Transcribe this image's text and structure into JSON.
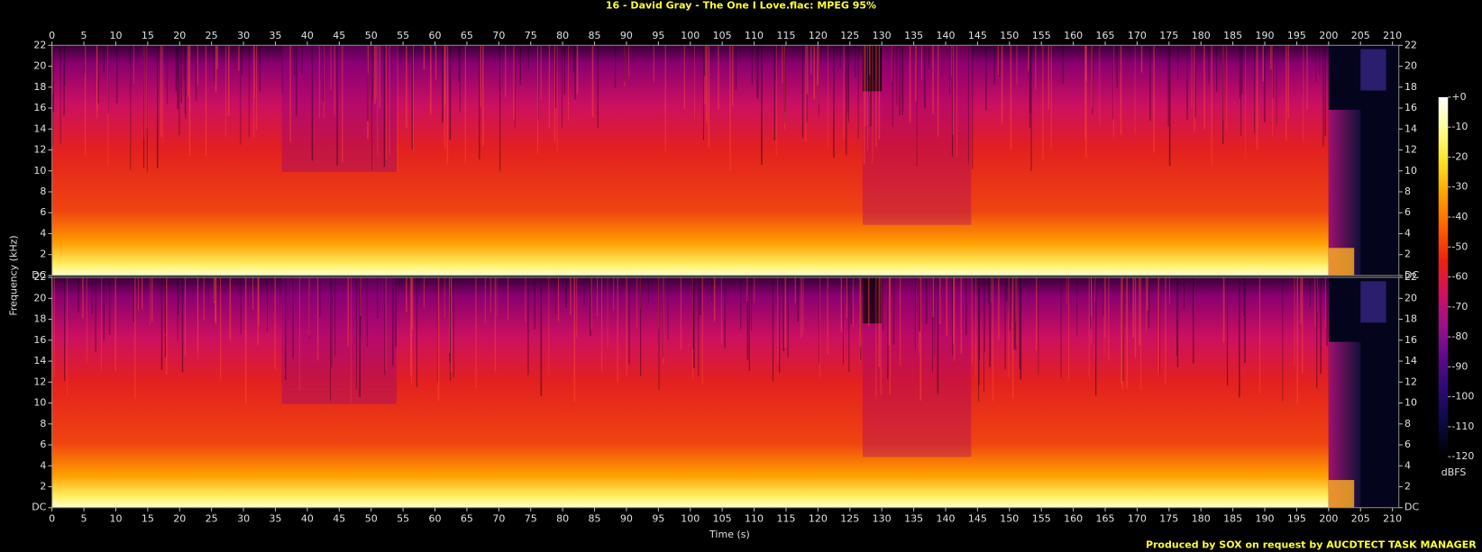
{
  "chart_data": {
    "type": "spectrogram",
    "title": "16 - David Gray - The One I Love.flac: MPEG 95%",
    "x_label": "Time (s)",
    "y_label": "Frequency (kHz)",
    "footer": "Produced by SOX on request by AUCDTECT TASK MANAGER",
    "xlim": [
      0,
      211
    ],
    "xticks": [
      0,
      5,
      10,
      15,
      20,
      25,
      30,
      35,
      40,
      45,
      50,
      55,
      60,
      65,
      70,
      75,
      80,
      85,
      90,
      95,
      100,
      105,
      110,
      115,
      120,
      125,
      130,
      135,
      140,
      145,
      150,
      155,
      160,
      165,
      170,
      175,
      180,
      185,
      190,
      195,
      200,
      205,
      210
    ],
    "ylim": [
      0,
      22
    ],
    "yticks": [
      {
        "value": 0,
        "label": "DC"
      },
      2,
      4,
      6,
      8,
      10,
      12,
      14,
      16,
      18,
      20,
      22
    ],
    "colorbar": {
      "label": "dBFS",
      "lim": [
        -120,
        0
      ],
      "ticks": [
        {
          "value": 0,
          "label": "+0"
        },
        -10,
        -20,
        -30,
        -40,
        -50,
        -60,
        -70,
        -80,
        -90,
        -100,
        -110,
        -120
      ],
      "colors": [
        "#000000",
        "#0a0a40",
        "#2a0a70",
        "#5a0a8a",
        "#9a108a",
        "#d01060",
        "#f02010",
        "#ff6000",
        "#ffa000",
        "#ffe020",
        "#ffff90",
        "#ffffff"
      ]
    }
  }
}
